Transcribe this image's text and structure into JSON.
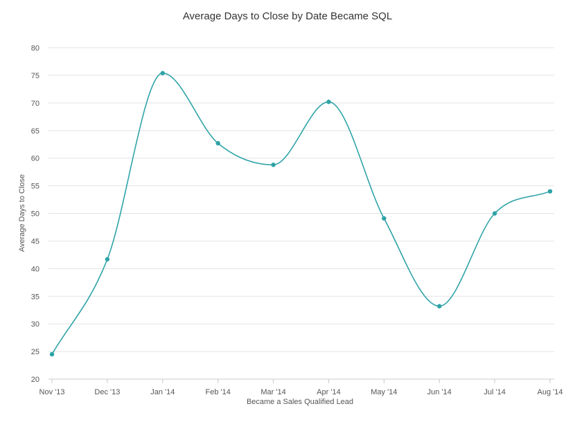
{
  "chart_data": {
    "type": "line",
    "title": "Average Days to Close by Date Became SQL",
    "xlabel": "Became a Sales Qualified Lead",
    "ylabel": "Average Days to Close",
    "categories": [
      "Nov '13",
      "Dec '13",
      "Jan '14",
      "Feb '14",
      "Mar '14",
      "Apr '14",
      "May '14",
      "Jun '14",
      "Jul '14",
      "Aug '14"
    ],
    "series": [
      {
        "values": [
          24.5,
          41.7,
          75.4,
          62.7,
          58.8,
          70.2,
          49.1,
          33.2,
          50.0,
          54.0
        ]
      }
    ],
    "ylim": [
      20,
      80
    ],
    "yticks": [
      20,
      25,
      30,
      35,
      40,
      45,
      50,
      55,
      60,
      65,
      70,
      75,
      80
    ],
    "grid": true,
    "smooth": true,
    "line_color": "#2ea3a7",
    "point_color": "#2ea3a7"
  }
}
